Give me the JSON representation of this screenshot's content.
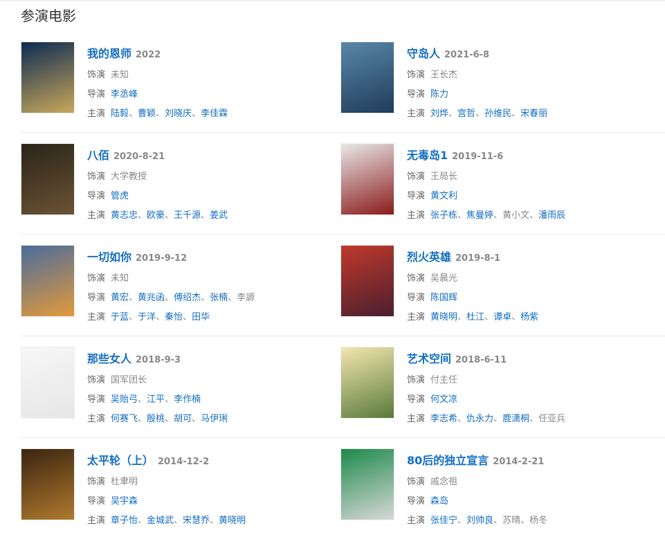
{
  "section_title": "参演电影",
  "labels": {
    "role": "饰演",
    "director": "导演",
    "cast": "主演"
  },
  "separator": "、",
  "movies": [
    {
      "title": "我的恩师",
      "date": "2022",
      "role": "未知",
      "poster_colors": [
        "#0d2a52",
        "#c9a85a"
      ],
      "directors": [
        {
          "n": "李丞峰",
          "link": true
        }
      ],
      "cast": [
        {
          "n": "陆毅",
          "link": true
        },
        {
          "n": "曹颖",
          "link": true
        },
        {
          "n": "刘晓庆",
          "link": true
        },
        {
          "n": "李佳霖",
          "link": true
        }
      ]
    },
    {
      "title": "守岛人",
      "date": "2021-6-8",
      "role": "王长杰",
      "poster_colors": [
        "#5a87a8",
        "#1f3c5a"
      ],
      "directors": [
        {
          "n": "陈力",
          "link": true
        }
      ],
      "cast": [
        {
          "n": "刘烨",
          "link": true
        },
        {
          "n": "宫哲",
          "link": true
        },
        {
          "n": "孙维民",
          "link": true
        },
        {
          "n": "宋春丽",
          "link": true
        }
      ]
    },
    {
      "title": "八佰",
      "date": "2020-8-21",
      "role": "大学教授",
      "poster_colors": [
        "#2a2418",
        "#6b5335"
      ],
      "directors": [
        {
          "n": "管虎",
          "link": true
        }
      ],
      "cast": [
        {
          "n": "黄志忠",
          "link": true
        },
        {
          "n": "欧豪",
          "link": true
        },
        {
          "n": "王千源",
          "link": true
        },
        {
          "n": "姜武",
          "link": true
        }
      ]
    },
    {
      "title": "无毒岛1",
      "date": "2019-11-6",
      "role": "王局长",
      "poster_colors": [
        "#e8e8e8",
        "#8a1b1b"
      ],
      "directors": [
        {
          "n": "黄文利",
          "link": true
        }
      ],
      "cast": [
        {
          "n": "张子栋",
          "link": true
        },
        {
          "n": "焦曼婷",
          "link": true
        },
        {
          "n": "黄小文",
          "link": false
        },
        {
          "n": "潘雨辰",
          "link": true
        }
      ]
    },
    {
      "title": "一切如你",
      "date": "2019-9-12",
      "role": "未知",
      "poster_colors": [
        "#4a6c9a",
        "#e39a3c"
      ],
      "directors": [
        {
          "n": "黄宏",
          "link": true
        },
        {
          "n": "黄兆函",
          "link": true
        },
        {
          "n": "傅绍杰",
          "link": true
        },
        {
          "n": "张楠",
          "link": true
        },
        {
          "n": "李謜",
          "link": false
        }
      ],
      "cast": [
        {
          "n": "于蓝",
          "link": true
        },
        {
          "n": "于洋",
          "link": true
        },
        {
          "n": "秦怡",
          "link": true
        },
        {
          "n": "田华",
          "link": true
        }
      ]
    },
    {
      "title": "烈火英雄",
      "date": "2019-8-1",
      "role": "吴晨光",
      "poster_colors": [
        "#c0392b",
        "#4a1f2e"
      ],
      "directors": [
        {
          "n": "陈国辉",
          "link": true
        }
      ],
      "cast": [
        {
          "n": "黄晓明",
          "link": true
        },
        {
          "n": "杜江",
          "link": true
        },
        {
          "n": "谭卓",
          "link": true
        },
        {
          "n": "杨紫",
          "link": true
        }
      ]
    },
    {
      "title": "那些女人",
      "date": "2018-9-3",
      "role": "国军团长",
      "poster_colors": [
        "#f7f7f7",
        "#e6e6e6"
      ],
      "directors": [
        {
          "n": "吴贻弓",
          "link": true
        },
        {
          "n": "江平",
          "link": true
        },
        {
          "n": "李作楠",
          "link": true
        }
      ],
      "cast": [
        {
          "n": "何赛飞",
          "link": true
        },
        {
          "n": "殷桃",
          "link": true
        },
        {
          "n": "胡可",
          "link": true
        },
        {
          "n": "马伊琍",
          "link": true
        }
      ]
    },
    {
      "title": "艺术空间",
      "date": "2018-6-11",
      "role": "付主任",
      "poster_colors": [
        "#f3e7b0",
        "#5a7a3a"
      ],
      "directors": [
        {
          "n": "何文凉",
          "link": true
        }
      ],
      "cast": [
        {
          "n": "李志希",
          "link": true
        },
        {
          "n": "仇永力",
          "link": true
        },
        {
          "n": "鹿潇桐",
          "link": true
        },
        {
          "n": "任亚兵",
          "link": false
        }
      ]
    },
    {
      "title": "太平轮（上）",
      "date": "2014-12-2",
      "role": "杜聿明",
      "poster_colors": [
        "#3a2410",
        "#b07a2e"
      ],
      "directors": [
        {
          "n": "吴宇森",
          "link": true
        }
      ],
      "cast": [
        {
          "n": "章子怡",
          "link": true
        },
        {
          "n": "金城武",
          "link": true
        },
        {
          "n": "宋慧乔",
          "link": true
        },
        {
          "n": "黄晓明",
          "link": true
        }
      ]
    },
    {
      "title": "80后的独立宣言",
      "date": "2014-2-21",
      "role": "戚念祖",
      "poster_colors": [
        "#1d8a4a",
        "#d8d8d8"
      ],
      "directors": [
        {
          "n": "森岛",
          "link": true
        }
      ],
      "cast": [
        {
          "n": "张佳宁",
          "link": true
        },
        {
          "n": "刘帅良",
          "link": true
        },
        {
          "n": "苏晴",
          "link": false
        },
        {
          "n": "杨冬",
          "link": false
        }
      ]
    }
  ]
}
